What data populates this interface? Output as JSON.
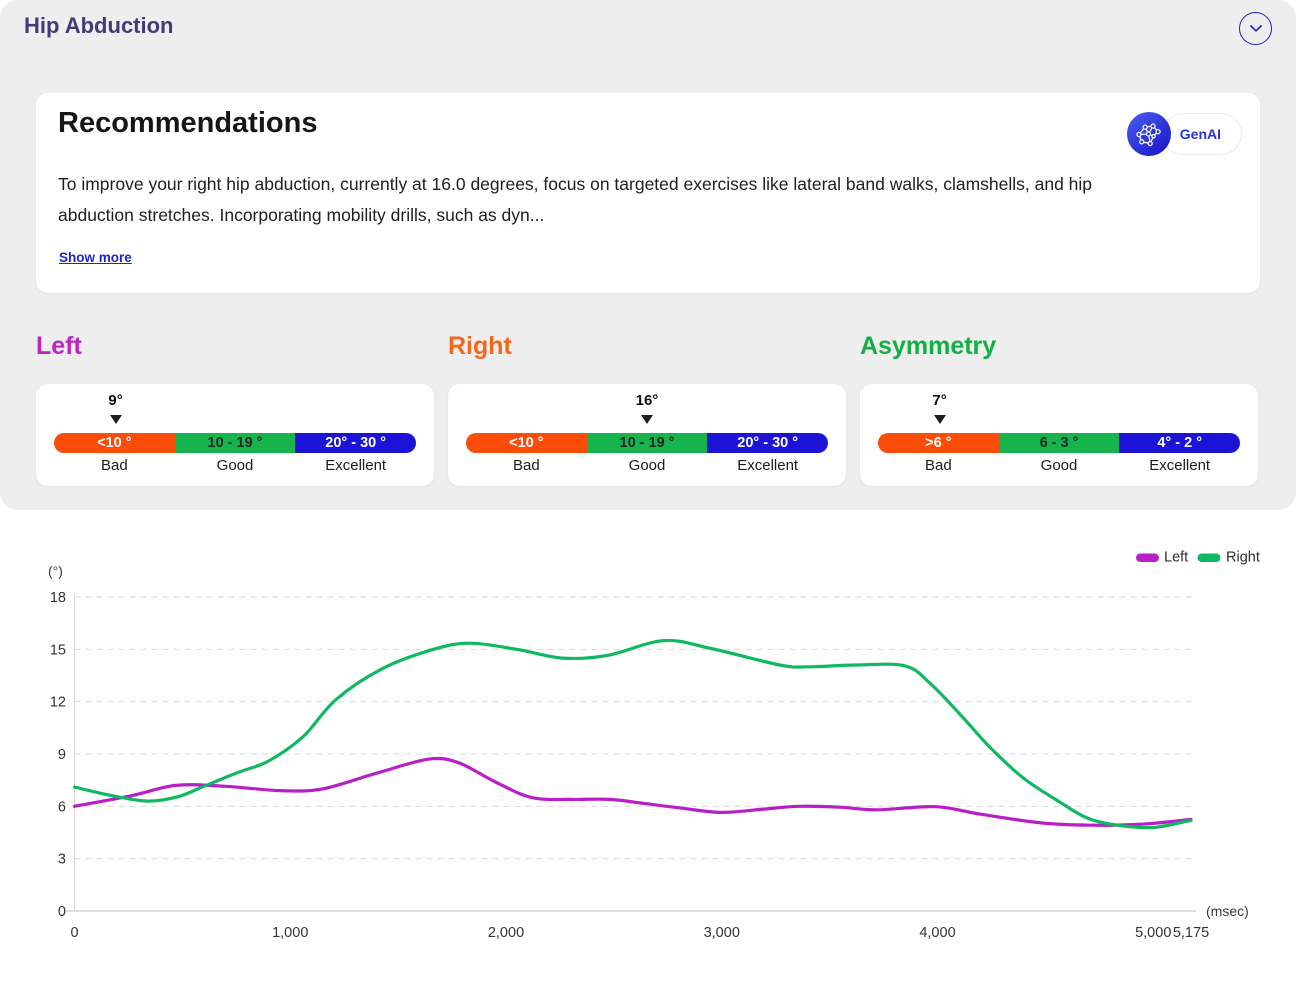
{
  "page": {
    "title": "Hip Abduction"
  },
  "colors": {
    "accent": "#1c22c2",
    "header": "#3f3c78"
  },
  "recommendations": {
    "title": "Recommendations",
    "badge_label": "GenAI",
    "body": "To improve your right hip abduction, currently at 16.0 degrees, focus on targeted exercises like lateral band walks, clamshells, and hip\nabduction stretches. Incorporating mobility drills, such as dyn...",
    "show_more": "Show more"
  },
  "gauges": [
    {
      "title": "Left",
      "title_color": "#bf24bf",
      "value": "9°",
      "pointer_pct": 17,
      "segments": [
        {
          "label": "<10 °",
          "color": "#fb4d09",
          "text_color": "#ffffff"
        },
        {
          "label": "10 - 19 °",
          "color": "#17b34c",
          "text_color": "#1d2b24"
        },
        {
          "label": "20° - 30 °",
          "color": "#1c13d6",
          "text_color": "#ffffff"
        }
      ],
      "ratings": [
        "Bad",
        "Good",
        "Excellent"
      ]
    },
    {
      "title": "Right",
      "title_color": "#f2691c",
      "value": "16°",
      "pointer_pct": 50,
      "segments": [
        {
          "label": "<10 °",
          "color": "#fb4d09",
          "text_color": "#ffffff"
        },
        {
          "label": "10 - 19 °",
          "color": "#17b34c",
          "text_color": "#1d2b24"
        },
        {
          "label": "20° - 30 °",
          "color": "#1c13d6",
          "text_color": "#ffffff"
        }
      ],
      "ratings": [
        "Bad",
        "Good",
        "Excellent"
      ]
    },
    {
      "title": "Asymmetry",
      "title_color": "#10b044",
      "value": "7°",
      "pointer_pct": 17,
      "segments": [
        {
          "label": ">6 °",
          "color": "#fb4d09",
          "text_color": "#ffffff"
        },
        {
          "label": "6 - 3 °",
          "color": "#17b34c",
          "text_color": "#1d2b24"
        },
        {
          "label": "4° - 2 °",
          "color": "#1c13d6",
          "text_color": "#ffffff"
        }
      ],
      "ratings": [
        "Bad",
        "Good",
        "Excellent"
      ]
    }
  ],
  "chart_data": {
    "type": "line",
    "ylabel": "(°)",
    "xlabel": "(msec)",
    "ylim": [
      0,
      18
    ],
    "yticks": [
      0,
      3,
      6,
      9,
      12,
      15,
      18
    ],
    "xticks": [
      0,
      1000,
      2000,
      3000,
      4000,
      5000,
      5175
    ],
    "xtick_labels": [
      "0",
      "1,000",
      "2,000",
      "3,000",
      "4,000",
      "5,000",
      "5,175"
    ],
    "grid": "dashed",
    "legend_position": "top-right",
    "series": [
      {
        "name": "Left",
        "color": "#b81fc6",
        "points": [
          [
            0,
            6.0
          ],
          [
            260,
            6.6
          ],
          [
            470,
            7.2
          ],
          [
            700,
            7.15
          ],
          [
            950,
            6.9
          ],
          [
            1150,
            7.0
          ],
          [
            1400,
            7.9
          ],
          [
            1640,
            8.7
          ],
          [
            1780,
            8.5
          ],
          [
            1950,
            7.4
          ],
          [
            2120,
            6.5
          ],
          [
            2300,
            6.4
          ],
          [
            2480,
            6.4
          ],
          [
            2650,
            6.15
          ],
          [
            2810,
            5.9
          ],
          [
            3000,
            5.65
          ],
          [
            3200,
            5.85
          ],
          [
            3360,
            6.0
          ],
          [
            3550,
            5.95
          ],
          [
            3720,
            5.8
          ],
          [
            3990,
            5.98
          ],
          [
            4200,
            5.55
          ],
          [
            4480,
            5.05
          ],
          [
            4700,
            4.92
          ],
          [
            4950,
            4.98
          ],
          [
            5175,
            5.25
          ]
        ]
      },
      {
        "name": "Right",
        "color": "#0fb964",
        "points": [
          [
            0,
            7.1
          ],
          [
            180,
            6.6
          ],
          [
            340,
            6.3
          ],
          [
            480,
            6.55
          ],
          [
            600,
            7.15
          ],
          [
            760,
            7.95
          ],
          [
            900,
            8.6
          ],
          [
            1060,
            10.0
          ],
          [
            1210,
            12.1
          ],
          [
            1420,
            13.85
          ],
          [
            1650,
            14.95
          ],
          [
            1830,
            15.35
          ],
          [
            2050,
            15.0
          ],
          [
            2260,
            14.5
          ],
          [
            2470,
            14.65
          ],
          [
            2730,
            15.5
          ],
          [
            2950,
            15.05
          ],
          [
            3270,
            14.1
          ],
          [
            3400,
            14.0
          ],
          [
            3620,
            14.1
          ],
          [
            3850,
            14.05
          ],
          [
            3970,
            13.0
          ],
          [
            4110,
            11.2
          ],
          [
            4250,
            9.3
          ],
          [
            4400,
            7.6
          ],
          [
            4560,
            6.3
          ],
          [
            4700,
            5.3
          ],
          [
            4860,
            4.88
          ],
          [
            5010,
            4.8
          ],
          [
            5175,
            5.2
          ]
        ]
      }
    ]
  }
}
